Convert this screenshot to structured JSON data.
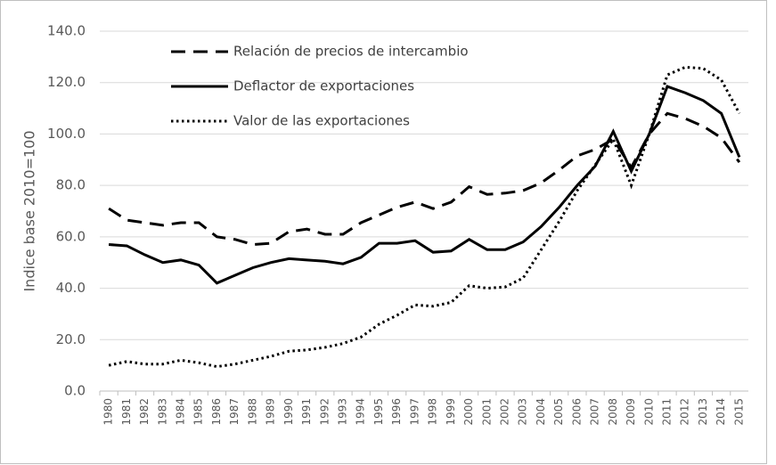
{
  "chart_data": {
    "type": "line",
    "y_label": "Indice base 2010=100",
    "x": [
      1980,
      1981,
      1982,
      1983,
      1984,
      1985,
      1986,
      1987,
      1988,
      1989,
      1990,
      1991,
      1992,
      1993,
      1994,
      1995,
      1996,
      1997,
      1998,
      1999,
      2000,
      2001,
      2002,
      2003,
      2004,
      2005,
      2006,
      2007,
      2008,
      2009,
      2010,
      2011,
      2012,
      2013,
      2014,
      2015
    ],
    "series": [
      {
        "name": "Relación de precios de intercambio",
        "color": "#000000",
        "style": "dashed",
        "values": [
          71,
          66.5,
          65.5,
          64.5,
          65.5,
          65.5,
          60,
          59,
          57,
          57.5,
          62,
          63,
          61,
          61,
          65.5,
          68.5,
          71.5,
          73.5,
          71,
          73.5,
          79.5,
          76.5,
          77,
          78,
          81,
          86,
          91.5,
          94,
          98,
          87,
          100,
          108,
          106,
          103,
          98.5,
          89
        ]
      },
      {
        "name": "Deflactor de exportaciones",
        "color": "#000000",
        "style": "solid",
        "values": [
          57,
          56.5,
          53,
          50,
          51,
          49,
          42,
          45,
          48,
          50,
          51.5,
          51,
          50.5,
          49.5,
          52,
          57.5,
          57.5,
          58.5,
          54,
          54.5,
          59,
          55,
          55,
          58,
          64,
          71.5,
          80,
          87.5,
          101,
          85.5,
          100,
          118.5,
          116,
          113,
          108,
          91
        ]
      },
      {
        "name": "Valor de las exportaciones",
        "color": "#000000",
        "style": "dotted",
        "values": [
          10,
          11.5,
          10.5,
          10.5,
          12,
          11,
          9.5,
          10.5,
          12,
          13.5,
          15.5,
          16,
          17,
          18.5,
          21,
          26,
          29.5,
          33.5,
          33,
          34.5,
          41,
          40,
          40.5,
          44,
          55,
          66,
          78,
          88,
          98,
          80,
          100,
          123,
          126,
          125.5,
          121,
          108
        ]
      }
    ],
    "ylim": [
      0,
      140
    ],
    "yticks": [
      {
        "value": 0,
        "label": "0.0"
      },
      {
        "value": 20,
        "label": "20.0"
      },
      {
        "value": 40,
        "label": "40.0"
      },
      {
        "value": 60,
        "label": "60.0"
      },
      {
        "value": 80,
        "label": "80.0"
      },
      {
        "value": 100,
        "label": "100.0"
      },
      {
        "value": 120,
        "label": "120.0"
      },
      {
        "value": 140,
        "label": "140.0"
      }
    ],
    "grid": true,
    "legend": "top-left"
  }
}
